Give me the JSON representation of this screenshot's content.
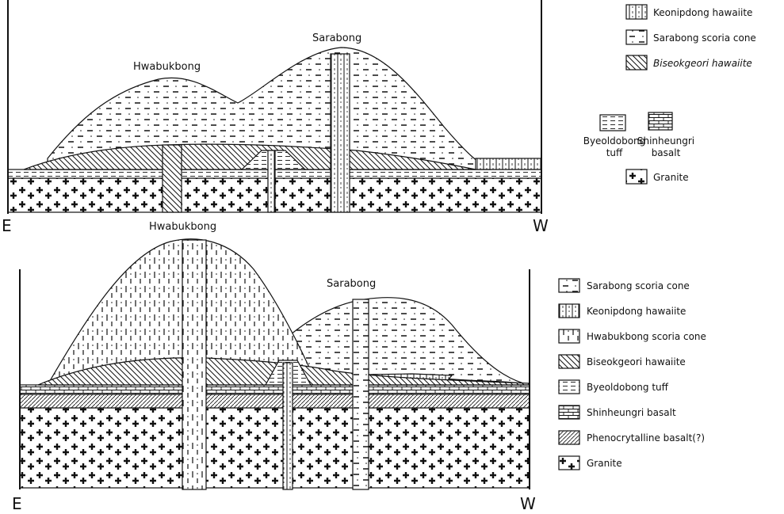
{
  "top": {
    "peaks": [
      "Hwabukbong",
      "Sarabong"
    ],
    "ends": [
      "E",
      "W"
    ],
    "legend": [
      "Keonipdong hawaiite",
      "Sarabong scoria cone",
      "Biseokgeori hawaiite",
      [
        "Byeoldobong",
        "tuff"
      ],
      [
        "Shinheungri",
        "basalt"
      ],
      "Granite"
    ]
  },
  "bottom": {
    "peaks": [
      "Hwabukbong",
      "Sarabong"
    ],
    "ends": [
      "E",
      "W"
    ],
    "legend": [
      "Sarabong scoria cone",
      "Keonipdong hawaiite",
      "Hwabukbong scoria cone",
      "Biseokgeori hawaiite",
      "Byeoldobong tuff",
      "Shinheungri basalt",
      "Phenocrytalline basalt(?)",
      "Granite"
    ]
  }
}
